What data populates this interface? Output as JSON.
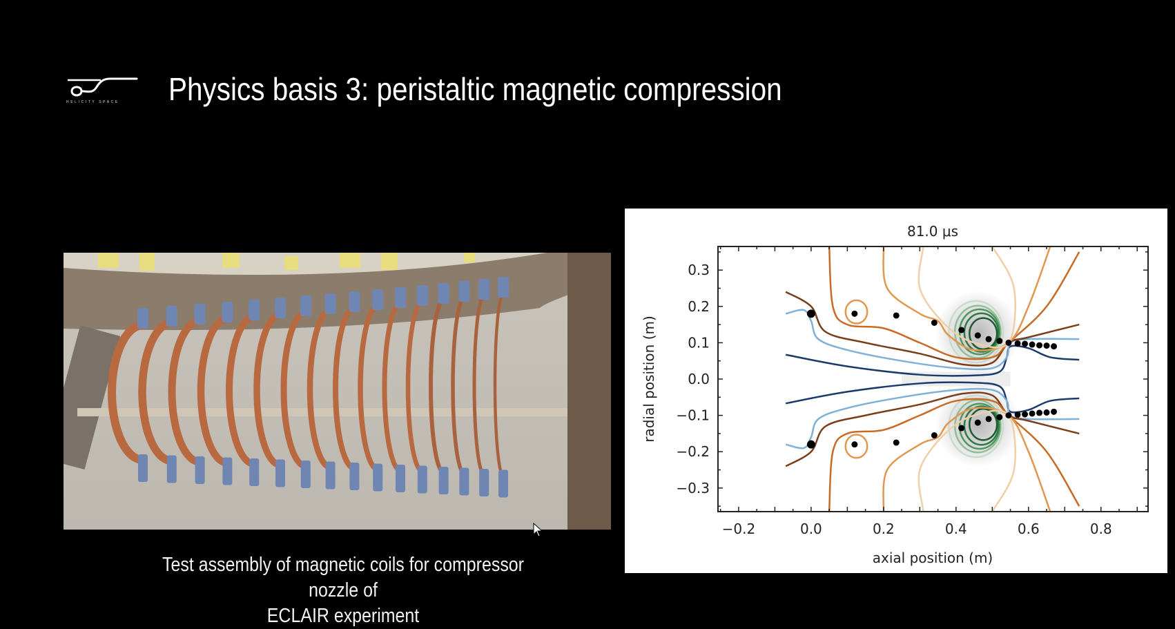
{
  "slide": {
    "title": "Physics basis 3: peristaltic magnetic compression",
    "logo": {
      "text": "HELICITY SPACE"
    },
    "photo": {
      "caption_lines": [
        "Test assembly of magnetic coils for compressor nozzle of",
        "ECLAIR experiment"
      ]
    }
  },
  "chart_data": {
    "type": "line",
    "title": "81.0 μs",
    "xlabel": "axial position (m)",
    "ylabel": "radial position (m)",
    "xlim": [
      -0.257,
      0.93
    ],
    "ylim": [
      -0.365,
      0.365
    ],
    "xticks": [
      "−0.2",
      "0.0",
      "0.2",
      "0.4",
      "0.6",
      "0.8"
    ],
    "xtick_values": [
      -0.2,
      0.0,
      0.2,
      0.4,
      0.6,
      0.8
    ],
    "yticks": [
      "0.3",
      "0.2",
      "0.1",
      "0.0",
      "−0.1",
      "−0.2",
      "−0.3"
    ],
    "ytick_values": [
      0.3,
      0.2,
      0.1,
      0.0,
      -0.1,
      -0.2,
      -0.3
    ],
    "grid": false,
    "symmetric_about_axis": true,
    "coil_markers": {
      "color": "#000000",
      "x": [
        0.0,
        0.12,
        0.235,
        0.34,
        0.415,
        0.46,
        0.49,
        0.52,
        0.545,
        0.57,
        0.59,
        0.61,
        0.63,
        0.65,
        0.67
      ],
      "y": [
        0.18,
        0.18,
        0.175,
        0.155,
        0.135,
        0.12,
        0.11,
        0.105,
        0.1,
        0.098,
        0.097,
        0.095,
        0.093,
        0.092,
        0.09
      ]
    },
    "contours": [
      {
        "color": "#1b3a6b",
        "x": [
          -0.07,
          0.1,
          0.3,
          0.45,
          0.52,
          0.54,
          0.55,
          0.6,
          0.66,
          0.74
        ],
        "y": [
          0.067,
          0.035,
          0.012,
          0.01,
          0.02,
          0.06,
          0.09,
          0.085,
          0.06,
          0.053
        ]
      },
      {
        "color": "#7fb0d8",
        "x": [
          -0.07,
          -0.02,
          0.0,
          0.02,
          0.1,
          0.25,
          0.4,
          0.5,
          0.54,
          0.55,
          0.6,
          0.74
        ],
        "y": [
          0.18,
          0.19,
          0.16,
          0.11,
          0.08,
          0.05,
          0.03,
          0.03,
          0.06,
          0.1,
          0.11,
          0.11
        ]
      },
      {
        "color": "#7a3d1a",
        "x": [
          -0.07,
          0.0,
          0.04,
          0.15,
          0.3,
          0.42,
          0.5,
          0.545,
          0.6,
          0.74
        ],
        "y": [
          0.24,
          0.2,
          0.13,
          0.1,
          0.07,
          0.04,
          0.045,
          0.1,
          0.115,
          0.15
        ]
      },
      {
        "color": "#c86a24",
        "x": [
          0.05,
          0.06,
          0.1,
          0.2,
          0.3,
          0.4,
          0.5,
          0.545,
          0.65,
          0.74
        ],
        "y": [
          0.365,
          0.2,
          0.15,
          0.14,
          0.1,
          0.06,
          0.06,
          0.1,
          0.2,
          0.35
        ]
      },
      {
        "color": "#e0974f",
        "x": [
          0.2,
          0.21,
          0.3,
          0.35,
          0.38,
          0.45,
          0.545,
          0.6,
          0.66
        ],
        "y": [
          0.365,
          0.25,
          0.18,
          0.16,
          0.12,
          0.08,
          0.1,
          0.2,
          0.365
        ]
      },
      {
        "color": "#f1cfa6",
        "x": [
          0.31,
          0.3,
          0.37,
          0.45,
          0.545,
          0.56,
          0.5
        ],
        "y": [
          0.365,
          0.25,
          0.15,
          0.1,
          0.1,
          0.25,
          0.365
        ]
      }
    ],
    "loops": [
      {
        "color": "#e0974f",
        "cx": 0.125,
        "cy": 0.185,
        "rx": 0.03,
        "ry": 0.032
      },
      {
        "color": "#c9dccb",
        "cx": 0.455,
        "cy": 0.13,
        "rx": 0.075,
        "ry": 0.085
      },
      {
        "color": "#8fbf96",
        "cx": 0.46,
        "cy": 0.13,
        "rx": 0.063,
        "ry": 0.072
      },
      {
        "color": "#4f9660",
        "cx": 0.465,
        "cy": 0.13,
        "rx": 0.055,
        "ry": 0.062
      },
      {
        "color": "#2d7a45",
        "cx": 0.47,
        "cy": 0.128,
        "rx": 0.047,
        "ry": 0.053
      },
      {
        "color": "#1e5a33",
        "cx": 0.475,
        "cy": 0.125,
        "rx": 0.038,
        "ry": 0.043
      }
    ]
  }
}
